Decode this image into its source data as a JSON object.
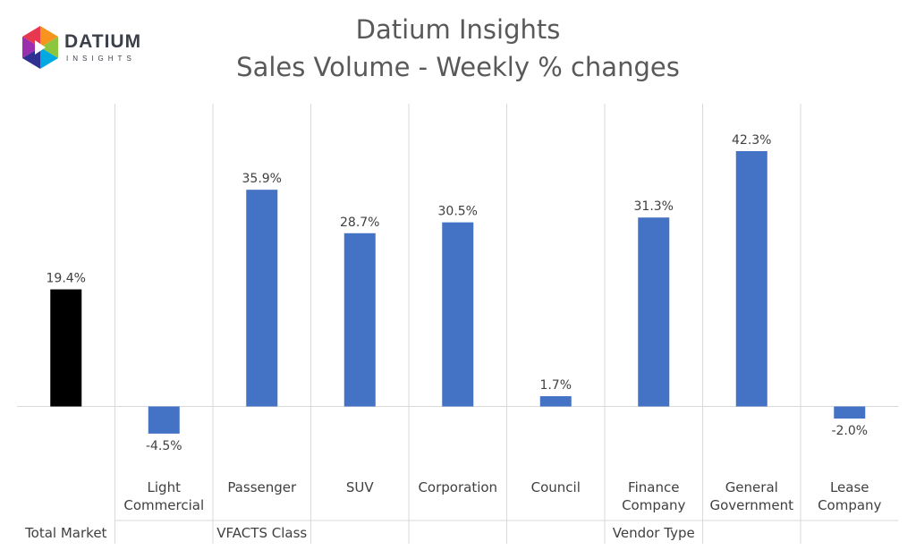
{
  "header": {
    "logo_name": "DATIUM",
    "logo_sub": "INSIGHTS",
    "title_line1": "Datium Insights",
    "title_line2": "Sales Volume - Weekly % changes"
  },
  "chart_data": {
    "type": "bar",
    "title": "Datium Insights\nSales Volume - Weekly % changes",
    "categories": [
      "Total Market",
      "Light\nCommercial",
      "Passenger",
      "SUV",
      "Corporation",
      "Council",
      "Finance\nCompany",
      "General\nGovernment",
      "Lease\nCompany"
    ],
    "values": [
      19.4,
      -4.5,
      35.9,
      28.7,
      30.5,
      1.7,
      31.3,
      42.3,
      -2.0
    ],
    "labels": [
      "19.4%",
      "-4.5%",
      "35.9%",
      "28.7%",
      "30.5%",
      "1.7%",
      "31.3%",
      "42.3%",
      "-2.0%"
    ],
    "groups": [
      {
        "name": "Total Market",
        "start": 0,
        "end": 0,
        "label_in_group_row": true
      },
      {
        "name": "VFACTS Class",
        "start": 1,
        "end": 3
      },
      {
        "name": "Vendor Type",
        "start": 4,
        "end": 8
      }
    ],
    "colors": [
      "#000000",
      "#4472c4",
      "#4472c4",
      "#4472c4",
      "#4472c4",
      "#4472c4",
      "#4472c4",
      "#4472c4",
      "#4472c4"
    ],
    "ylim": [
      -10,
      50
    ],
    "grid": false,
    "legend": "none"
  }
}
